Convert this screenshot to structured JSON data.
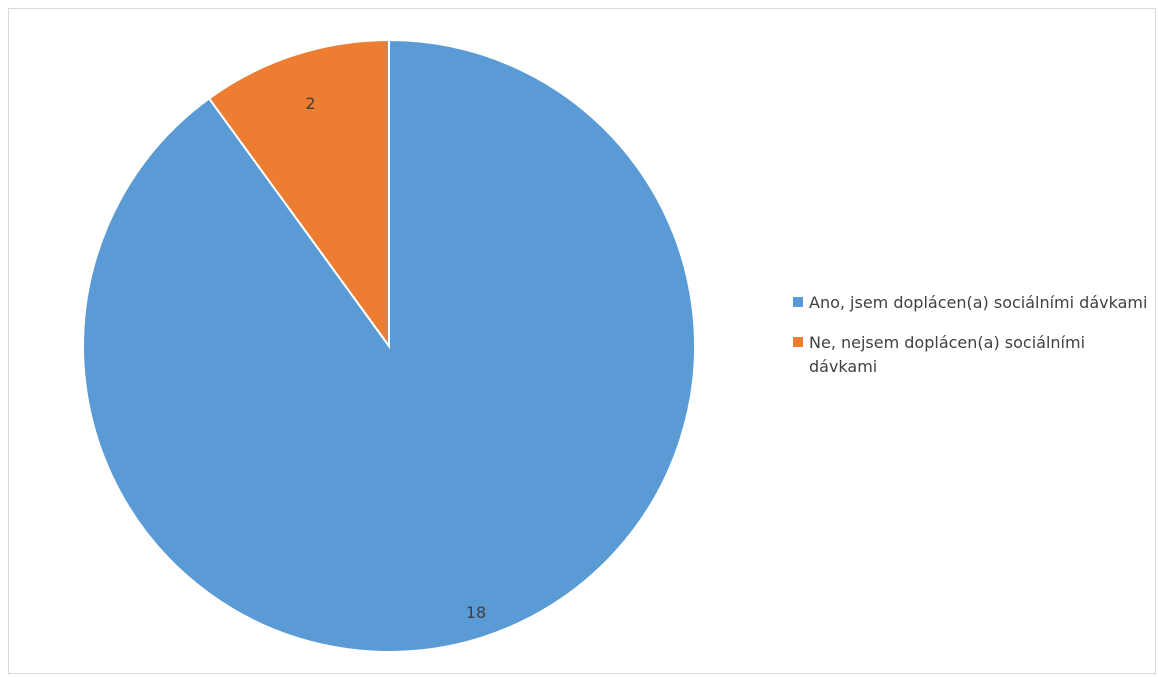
{
  "chart_data": {
    "type": "pie",
    "title": "",
    "categories": [
      "Ano, jsem doplácen(a) sociálními dávkami",
      "Ne, nejsem doplácen(a) sociálními dávkami"
    ],
    "values": [
      18,
      2
    ],
    "data_labels": [
      "18",
      "2"
    ],
    "colors": [
      "#5b9bd5",
      "#ed7d31"
    ],
    "legend_position": "right",
    "start_angle_deg": 0,
    "direction": "clockwise"
  }
}
